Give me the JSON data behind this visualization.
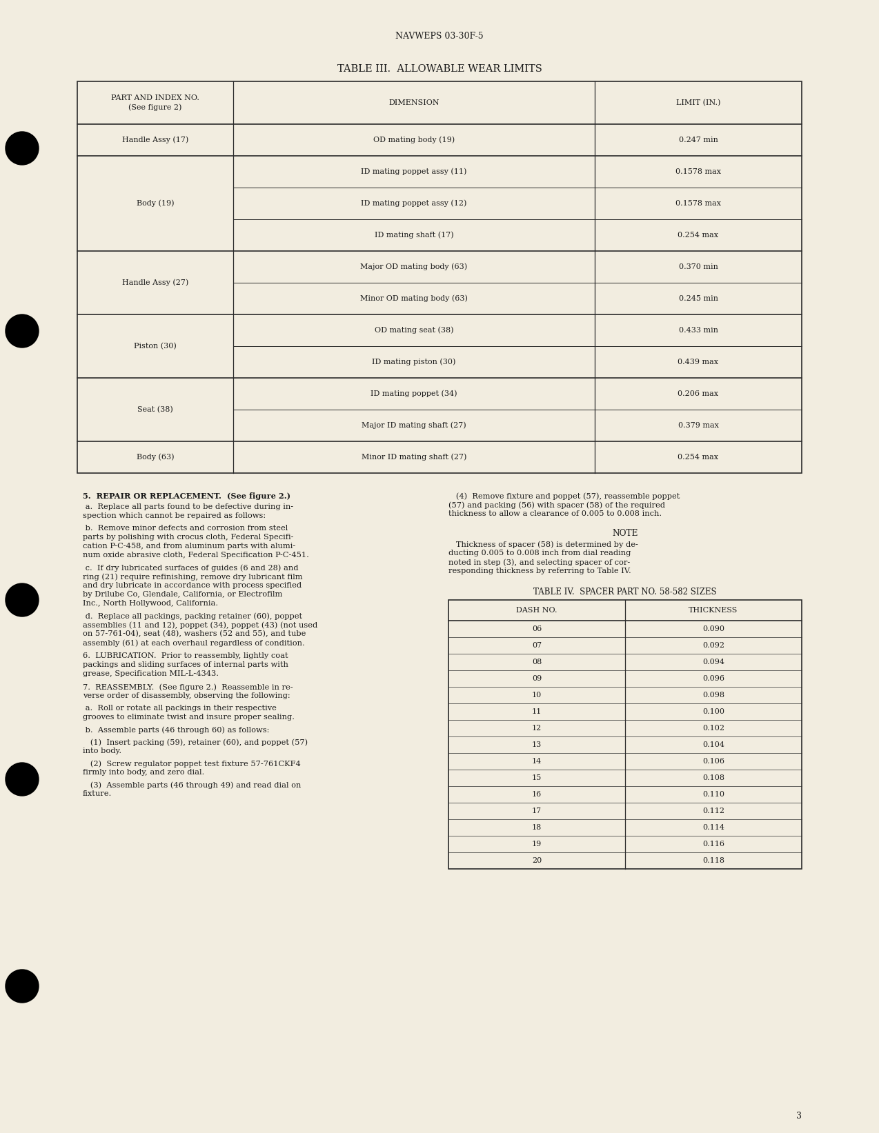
{
  "page_header": "NAVWEPS 03-30F-5",
  "table3_title": "TABLE III.  ALLOWABLE WEAR LIMITS",
  "table3_col_headers": [
    "PART AND INDEX NO.\n(See figure 2)",
    "DIMENSION",
    "LIMIT (IN.)"
  ],
  "table3_groups": [
    {
      "label": "Handle Assy (17)",
      "dims": [
        "OD mating body (19)"
      ],
      "limits": [
        "0.247 min"
      ]
    },
    {
      "label": "Body (19)",
      "dims": [
        "ID mating poppet assy (11)",
        "ID mating poppet assy (12)",
        "ID mating shaft (17)"
      ],
      "limits": [
        "0.1578 max",
        "0.1578 max",
        "0.254 max"
      ]
    },
    {
      "label": "Handle Assy (27)",
      "dims": [
        "Major OD mating body (63)",
        "Minor OD mating body (63)"
      ],
      "limits": [
        "0.370 min",
        "0.245 min"
      ]
    },
    {
      "label": "Piston (30)",
      "dims": [
        "OD mating seat (38)",
        "ID mating piston (30)"
      ],
      "limits": [
        "0.433 min",
        "0.439 max"
      ]
    },
    {
      "label": "Seat (38)",
      "dims": [
        "ID mating poppet (34)",
        "Major ID mating shaft (27)"
      ],
      "limits": [
        "0.206 max",
        "0.379 max"
      ]
    },
    {
      "label": "Body (63)",
      "dims": [
        "Minor ID mating shaft (27)"
      ],
      "limits": [
        "0.254 max"
      ]
    }
  ],
  "left_col_text": [
    {
      "type": "heading",
      "text": "5.  REPAIR OR REPLACEMENT.  (See figure 2.)"
    },
    {
      "type": "para",
      "text": " a.  Replace all parts found to be defective during in-\nspection which cannot be repaired as follows:"
    },
    {
      "type": "para",
      "text": " b.  Remove minor defects and corrosion from steel\nparts by polishing with crocus cloth, Federal Specifi-\ncation P-C-458, and from aluminum parts with alumi-\nnum oxide abrasive cloth, Federal Specification P-C-451."
    },
    {
      "type": "para",
      "text": " c.  If dry lubricated surfaces of guides (6 and 28) and\nring (21) require refinishing, remove dry lubricant film\nand dry lubricate in accordance with process specified\nby Drilube Co, Glendale, California, or Electrofilm\nInc., North Hollywood, California."
    },
    {
      "type": "para",
      "text": " d.  Replace all packings, packing retainer (60), poppet\nassemblies (11 and 12), poppet (34), poppet (43) (not used\non 57-761-04), seat (48), washers (52 and 55), and tube\nassembly (61) at each overhaul regardless of condition."
    },
    {
      "type": "heading2",
      "text": "6.  LUBRICATION.  Prior to reassembly, lightly coat\npackings and sliding surfaces of internal parts with\ngrease, Specification MIL-L-4343."
    },
    {
      "type": "heading2",
      "text": "7.  REASSEMBLY.  (See figure 2.)  Reassemble in re-\nverse order of disassembly, observing the following:"
    },
    {
      "type": "para",
      "text": " a.  Roll or rotate all packings in their respective\ngrooves to eliminate twist and insure proper sealing."
    },
    {
      "type": "para",
      "text": " b.  Assemble parts (46 through 60) as follows:"
    },
    {
      "type": "para",
      "text": "   (1)  Insert packing (59), retainer (60), and poppet (57)\ninto body."
    },
    {
      "type": "para",
      "text": "   (2)  Screw regulator poppet test fixture 57-761CKF4\nfirmly into body, and zero dial."
    },
    {
      "type": "para",
      "text": "   (3)  Assemble parts (46 through 49) and read dial on\nfixture."
    }
  ],
  "right_col_text": [
    {
      "type": "para",
      "text": "   (4)  Remove fixture and poppet (57), reassemble poppet\n(57) and packing (56) with spacer (58) of the required\nthickness to allow a clearance of 0.005 to 0.008 inch."
    },
    {
      "type": "note_title",
      "text": "NOTE"
    },
    {
      "type": "note_body",
      "text": "   Thickness of spacer (58) is determined by de-\nducting 0.005 to 0.008 inch from dial reading\nnoted in step (3), and selecting spacer of cor-\nresponding thickness by referring to Table IV."
    }
  ],
  "table4_title": "TABLE IV.  SPACER PART NO. 58-582 SIZES",
  "table4_col_headers": [
    "DASH NO.",
    "THICKNESS"
  ],
  "table4_rows": [
    [
      "06",
      "0.090"
    ],
    [
      "07",
      "0.092"
    ],
    [
      "08",
      "0.094"
    ],
    [
      "09",
      "0.096"
    ],
    [
      "10",
      "0.098"
    ],
    [
      "11",
      "0.100"
    ],
    [
      "12",
      "0.102"
    ],
    [
      "13",
      "0.104"
    ],
    [
      "14",
      "0.106"
    ],
    [
      "15",
      "0.108"
    ],
    [
      "16",
      "0.110"
    ],
    [
      "17",
      "0.112"
    ],
    [
      "18",
      "0.114"
    ],
    [
      "19",
      "0.116"
    ],
    [
      "20",
      "0.118"
    ]
  ],
  "page_number": "3",
  "bg_color": "#f2ede0",
  "text_color": "#1a1a1a",
  "line_color": "#2a2a2a"
}
